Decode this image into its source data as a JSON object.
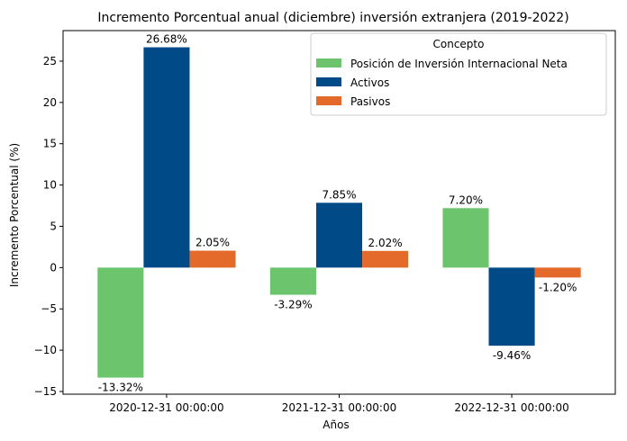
{
  "chart_data": {
    "type": "bar",
    "title": "Incremento Porcentual anual (diciembre) inversión extranjera (2019-2022)",
    "xlabel": "Años",
    "ylabel": "Incremento Porcentual (%)",
    "categories": [
      "2020-12-31 00:00:00",
      "2021-12-31 00:00:00",
      "2022-12-31 00:00:00"
    ],
    "series": [
      {
        "name": "Posición de Inversión Internacional Neta",
        "color": "#6cc46c",
        "values": [
          -13.32,
          -3.29,
          7.2
        ],
        "labels": [
          "-13.32%",
          "-3.29%",
          "7.20%"
        ]
      },
      {
        "name": "Activos",
        "color": "#004a87",
        "values": [
          26.68,
          7.85,
          -9.46
        ],
        "labels": [
          "26.68%",
          "7.85%",
          "-9.46%"
        ]
      },
      {
        "name": "Pasivos",
        "color": "#e36a2a",
        "values": [
          2.05,
          2.02,
          -1.2
        ],
        "labels": [
          "2.05%",
          "2.02%",
          "-1.20%"
        ]
      }
    ],
    "ylim": [
      -15.33,
      28.7
    ],
    "yticks": [
      -15,
      -10,
      -5,
      0,
      5,
      10,
      15,
      20,
      25
    ],
    "ytick_labels": [
      "−15",
      "−10",
      "−5",
      "0",
      "5",
      "10",
      "15",
      "20",
      "25"
    ],
    "legend": {
      "title": "Concepto",
      "position": "top-right"
    },
    "grid": false
  }
}
